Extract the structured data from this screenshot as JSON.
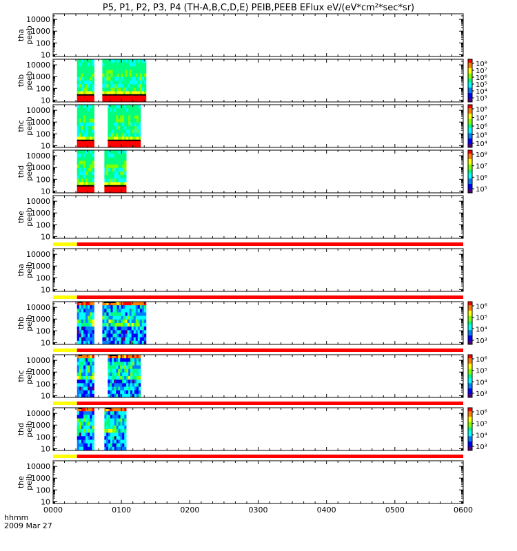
{
  "title": "P5, P1, P2, P3, P4 (TH-A,B,C,D,E) PEIB,PEEB EFlux eV/(eV*cm²*sec*sr)",
  "chart_data": {
    "type": "heatmap",
    "title": "P5, P1, P2, P3, P4 (TH-A,B,C,D,E) PEIB,PEEB EFlux eV/(eV*cm²*sec*sr)",
    "date_label": "2009 Mar 27",
    "time_unit_label": "hhmm",
    "x_ticks": [
      "0000",
      "0100",
      "0200",
      "0300",
      "0400",
      "0500",
      "0600"
    ],
    "xlim_hours": [
      0,
      6
    ],
    "yscale": "log",
    "y_ticks": [
      "10",
      "100",
      "1000",
      "10000"
    ],
    "ylim_eV": [
      7,
      30000
    ],
    "panels": [
      {
        "probe": "tha",
        "instrument": "peeb",
        "ylabel": [
          "tha",
          "peeb"
        ],
        "data_intervals_hours": [],
        "status_bar_after": false
      },
      {
        "probe": "thb",
        "instrument": "peeb",
        "ylabel": [
          "thb",
          "peeb"
        ],
        "data_intervals_hours": [
          [
            0.35,
            0.6
          ],
          [
            0.72,
            1.36
          ]
        ],
        "colorbar": {
          "labels": [
            "10³",
            "10⁴",
            "10⁵",
            "10⁶",
            "10⁷",
            "10⁸"
          ]
        },
        "status_bar_after": false
      },
      {
        "probe": "thc",
        "instrument": "peeb",
        "ylabel": [
          "thc",
          "peeb"
        ],
        "data_intervals_hours": [
          [
            0.35,
            0.6
          ],
          [
            0.8,
            1.28
          ]
        ],
        "colorbar": {
          "labels": [
            "10⁴",
            "10⁵",
            "10⁶",
            "10⁷",
            "10⁸"
          ]
        },
        "status_bar_after": false
      },
      {
        "probe": "thd",
        "instrument": "peeb",
        "ylabel": [
          "thd",
          "peeb"
        ],
        "data_intervals_hours": [
          [
            0.35,
            0.6
          ],
          [
            0.75,
            1.07
          ]
        ],
        "colorbar": {
          "labels": [
            "10⁵",
            "10⁶",
            "10⁷",
            "10⁸"
          ]
        },
        "status_bar_after": false
      },
      {
        "probe": "the",
        "instrument": "peeb",
        "ylabel": [
          "the",
          "peeb"
        ],
        "data_intervals_hours": [],
        "status_bar_after": true
      },
      {
        "probe": "tha",
        "instrument": "peib",
        "ylabel": [
          "tha",
          "peib"
        ],
        "data_intervals_hours": [],
        "status_bar_after": true
      },
      {
        "probe": "thb",
        "instrument": "peib",
        "ylabel": [
          "thb",
          "peib"
        ],
        "data_intervals_hours": [
          [
            0.35,
            0.6
          ],
          [
            0.72,
            1.36
          ]
        ],
        "colorbar": {
          "labels": [
            "10³",
            "10⁴",
            "10⁵",
            "10⁶"
          ]
        },
        "status_bar_after": true
      },
      {
        "probe": "thc",
        "instrument": "peib",
        "ylabel": [
          "thc",
          "peib"
        ],
        "data_intervals_hours": [
          [
            0.35,
            0.6
          ],
          [
            0.8,
            1.28
          ]
        ],
        "colorbar": {
          "labels": [
            "10³",
            "10⁴",
            "10⁵",
            "10⁶"
          ]
        },
        "status_bar_after": true
      },
      {
        "probe": "thd",
        "instrument": "peib",
        "ylabel": [
          "thd",
          "peib"
        ],
        "data_intervals_hours": [
          [
            0.35,
            0.6
          ],
          [
            0.75,
            1.07
          ]
        ],
        "colorbar": {
          "labels": [
            "10³",
            "10⁴",
            "10⁵",
            "10⁶"
          ]
        },
        "status_bar_after": true
      },
      {
        "probe": "the",
        "instrument": "peib",
        "ylabel": [
          "the",
          "peib"
        ],
        "data_intervals_hours": [],
        "status_bar_after": false
      }
    ],
    "status_bar": {
      "segments": [
        {
          "from_hours": 0,
          "to_hours": 0.35,
          "color": "#ffff00"
        },
        {
          "from_hours": 0.35,
          "to_hours": 6,
          "color": "#ff0000"
        }
      ]
    },
    "colormap": [
      "#500080",
      "#0000ff",
      "#0080ff",
      "#00ffff",
      "#00ff80",
      "#80ff00",
      "#ffff00",
      "#ff8000",
      "#ff0000"
    ]
  }
}
